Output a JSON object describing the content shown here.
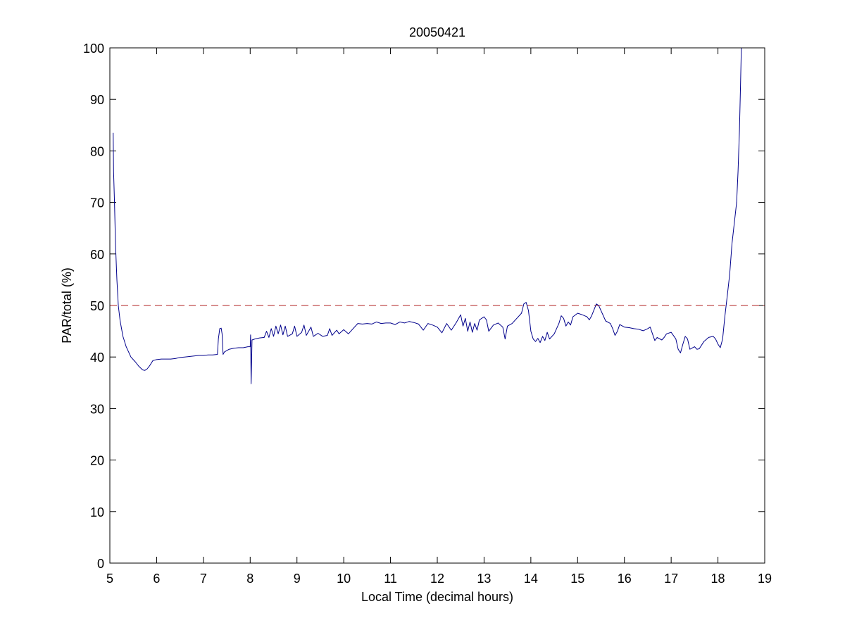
{
  "chart_data": {
    "type": "line",
    "title": "20050421",
    "xlabel": "Local Time (decimal hours)",
    "ylabel": "PAR/total (%)",
    "xlim": [
      5,
      19
    ],
    "ylim": [
      0,
      100
    ],
    "xticks": [
      5,
      6,
      7,
      8,
      9,
      10,
      11,
      12,
      13,
      14,
      15,
      16,
      17,
      18,
      19
    ],
    "yticks": [
      0,
      10,
      20,
      30,
      40,
      50,
      60,
      70,
      80,
      90,
      100
    ],
    "grid": false,
    "legend": "none",
    "reference_line": {
      "y": 50,
      "style": "dashed",
      "color": "#b22222"
    },
    "series": [
      {
        "color": "#00008b",
        "points": [
          [
            5.07,
            83.5
          ],
          [
            5.08,
            76
          ],
          [
            5.1,
            70
          ],
          [
            5.12,
            62
          ],
          [
            5.15,
            55
          ],
          [
            5.18,
            50
          ],
          [
            5.22,
            47
          ],
          [
            5.28,
            44
          ],
          [
            5.35,
            42
          ],
          [
            5.45,
            40
          ],
          [
            5.55,
            39
          ],
          [
            5.62,
            38.2
          ],
          [
            5.7,
            37.5
          ],
          [
            5.75,
            37.4
          ],
          [
            5.8,
            37.7
          ],
          [
            5.85,
            38.3
          ],
          [
            5.92,
            39.3
          ],
          [
            6.0,
            39.5
          ],
          [
            6.1,
            39.6
          ],
          [
            6.2,
            39.6
          ],
          [
            6.3,
            39.6
          ],
          [
            6.4,
            39.7
          ],
          [
            6.5,
            39.9
          ],
          [
            6.6,
            40.0
          ],
          [
            6.7,
            40.1
          ],
          [
            6.8,
            40.2
          ],
          [
            6.9,
            40.3
          ],
          [
            7.0,
            40.3
          ],
          [
            7.1,
            40.4
          ],
          [
            7.2,
            40.4
          ],
          [
            7.3,
            40.5
          ],
          [
            7.32,
            43.5
          ],
          [
            7.35,
            45.5
          ],
          [
            7.38,
            45.6
          ],
          [
            7.4,
            44.5
          ],
          [
            7.42,
            40.5
          ],
          [
            7.45,
            41.0
          ],
          [
            7.55,
            41.5
          ],
          [
            7.65,
            41.7
          ],
          [
            7.75,
            41.8
          ],
          [
            7.85,
            41.8
          ],
          [
            7.95,
            42.0
          ],
          [
            8.0,
            42.0
          ],
          [
            8.01,
            44.3
          ],
          [
            8.02,
            34.8
          ],
          [
            8.03,
            39
          ],
          [
            8.04,
            43.3
          ],
          [
            8.1,
            43.5
          ],
          [
            8.2,
            43.7
          ],
          [
            8.3,
            43.8
          ],
          [
            8.35,
            45.0
          ],
          [
            8.4,
            43.8
          ],
          [
            8.45,
            45.5
          ],
          [
            8.5,
            44.0
          ],
          [
            8.55,
            46.0
          ],
          [
            8.6,
            44.5
          ],
          [
            8.65,
            46.2
          ],
          [
            8.7,
            44.3
          ],
          [
            8.75,
            46.0
          ],
          [
            8.8,
            44.0
          ],
          [
            8.9,
            44.5
          ],
          [
            8.95,
            46.0
          ],
          [
            9.0,
            44.0
          ],
          [
            9.1,
            44.8
          ],
          [
            9.15,
            46.2
          ],
          [
            9.2,
            44.2
          ],
          [
            9.3,
            45.8
          ],
          [
            9.35,
            44.0
          ],
          [
            9.45,
            44.6
          ],
          [
            9.55,
            44.0
          ],
          [
            9.65,
            44.2
          ],
          [
            9.7,
            45.5
          ],
          [
            9.75,
            44.2
          ],
          [
            9.85,
            45.2
          ],
          [
            9.9,
            44.5
          ],
          [
            10.0,
            45.3
          ],
          [
            10.1,
            44.5
          ],
          [
            10.2,
            45.5
          ],
          [
            10.3,
            46.5
          ],
          [
            10.4,
            46.4
          ],
          [
            10.5,
            46.5
          ],
          [
            10.6,
            46.4
          ],
          [
            10.7,
            46.8
          ],
          [
            10.8,
            46.5
          ],
          [
            10.9,
            46.6
          ],
          [
            11.0,
            46.6
          ],
          [
            11.1,
            46.3
          ],
          [
            11.2,
            46.8
          ],
          [
            11.3,
            46.6
          ],
          [
            11.4,
            46.9
          ],
          [
            11.5,
            46.7
          ],
          [
            11.6,
            46.4
          ],
          [
            11.7,
            45.2
          ],
          [
            11.8,
            46.5
          ],
          [
            11.9,
            46.2
          ],
          [
            12.0,
            45.8
          ],
          [
            12.1,
            44.7
          ],
          [
            12.2,
            46.5
          ],
          [
            12.3,
            45.2
          ],
          [
            12.4,
            46.6
          ],
          [
            12.5,
            48.2
          ],
          [
            12.55,
            46.0
          ],
          [
            12.6,
            47.5
          ],
          [
            12.65,
            45.0
          ],
          [
            12.7,
            46.8
          ],
          [
            12.75,
            44.8
          ],
          [
            12.8,
            46.5
          ],
          [
            12.85,
            45.2
          ],
          [
            12.9,
            47.2
          ],
          [
            13.0,
            47.8
          ],
          [
            13.05,
            47.2
          ],
          [
            13.1,
            45.0
          ],
          [
            13.2,
            46.2
          ],
          [
            13.3,
            46.6
          ],
          [
            13.4,
            45.8
          ],
          [
            13.45,
            43.5
          ],
          [
            13.5,
            46.0
          ],
          [
            13.6,
            46.5
          ],
          [
            13.7,
            47.5
          ],
          [
            13.8,
            48.5
          ],
          [
            13.85,
            50.3
          ],
          [
            13.9,
            50.6
          ],
          [
            13.95,
            49.0
          ],
          [
            14.0,
            45.0
          ],
          [
            14.05,
            43.5
          ],
          [
            14.1,
            43.0
          ],
          [
            14.15,
            43.6
          ],
          [
            14.2,
            42.8
          ],
          [
            14.25,
            44.0
          ],
          [
            14.3,
            43.2
          ],
          [
            14.35,
            44.8
          ],
          [
            14.4,
            43.5
          ],
          [
            14.5,
            44.5
          ],
          [
            14.6,
            46.5
          ],
          [
            14.65,
            48.0
          ],
          [
            14.7,
            47.5
          ],
          [
            14.75,
            46.0
          ],
          [
            14.8,
            46.8
          ],
          [
            14.85,
            46.2
          ],
          [
            14.9,
            47.8
          ],
          [
            15.0,
            48.5
          ],
          [
            15.1,
            48.2
          ],
          [
            15.2,
            47.8
          ],
          [
            15.25,
            47.2
          ],
          [
            15.3,
            48.0
          ],
          [
            15.4,
            50.3
          ],
          [
            15.45,
            50.0
          ],
          [
            15.5,
            49.0
          ],
          [
            15.6,
            47.0
          ],
          [
            15.7,
            46.5
          ],
          [
            15.75,
            45.5
          ],
          [
            15.8,
            44.2
          ],
          [
            15.85,
            45.0
          ],
          [
            15.9,
            46.3
          ],
          [
            16.0,
            45.8
          ],
          [
            16.1,
            45.7
          ],
          [
            16.2,
            45.5
          ],
          [
            16.3,
            45.4
          ],
          [
            16.4,
            45.1
          ],
          [
            16.5,
            45.5
          ],
          [
            16.55,
            45.8
          ],
          [
            16.6,
            44.5
          ],
          [
            16.65,
            43.2
          ],
          [
            16.7,
            43.8
          ],
          [
            16.8,
            43.3
          ],
          [
            16.85,
            43.8
          ],
          [
            16.9,
            44.5
          ],
          [
            17.0,
            44.8
          ],
          [
            17.1,
            43.5
          ],
          [
            17.15,
            41.5
          ],
          [
            17.2,
            40.8
          ],
          [
            17.25,
            42.5
          ],
          [
            17.3,
            44.0
          ],
          [
            17.35,
            43.5
          ],
          [
            17.4,
            41.5
          ],
          [
            17.5,
            42.0
          ],
          [
            17.55,
            41.5
          ],
          [
            17.6,
            41.6
          ],
          [
            17.7,
            43.0
          ],
          [
            17.8,
            43.8
          ],
          [
            17.9,
            44.0
          ],
          [
            17.95,
            43.5
          ],
          [
            18.0,
            42.5
          ],
          [
            18.05,
            41.8
          ],
          [
            18.1,
            43.5
          ],
          [
            18.15,
            48.0
          ],
          [
            18.2,
            52.0
          ],
          [
            18.25,
            56.0
          ],
          [
            18.3,
            62.0
          ],
          [
            18.35,
            66.0
          ],
          [
            18.4,
            70.0
          ],
          [
            18.43,
            76.0
          ],
          [
            18.46,
            84.0
          ],
          [
            18.48,
            92.0
          ],
          [
            18.5,
            100.0
          ]
        ]
      }
    ]
  }
}
